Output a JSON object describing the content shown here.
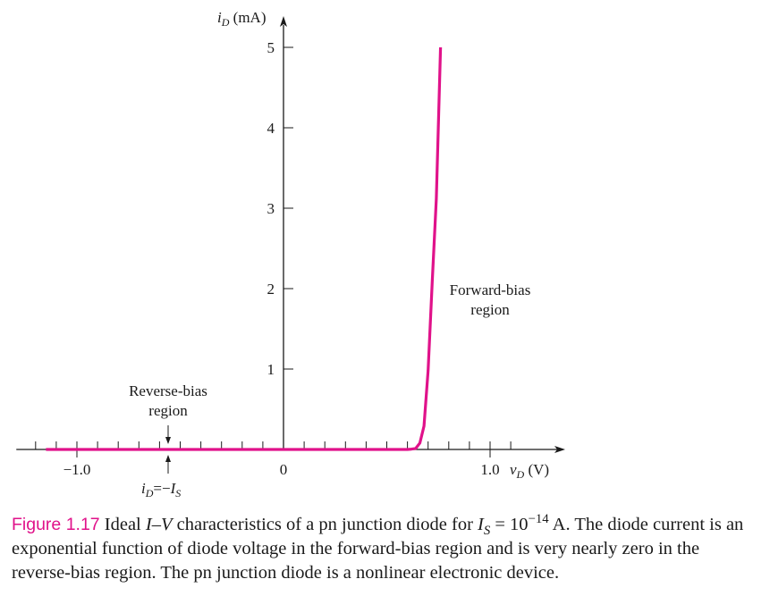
{
  "chart_data": {
    "type": "line",
    "xlabel": {
      "var": "v",
      "sub": "D",
      "unit": "(V)"
    },
    "ylabel": {
      "var": "i",
      "sub": "D",
      "unit": "(mA)"
    },
    "xlim": [
      -1.25,
      1.35
    ],
    "ylim": [
      0,
      5.4
    ],
    "x_tick_labels": [
      {
        "x": -1.0,
        "label": "−1.0"
      },
      {
        "x": 0.0,
        "label": "0"
      },
      {
        "x": 1.0,
        "label": "1.0"
      }
    ],
    "y_tick_labels": [
      {
        "y": 1,
        "label": "1"
      },
      {
        "y": 2,
        "label": "2"
      },
      {
        "y": 3,
        "label": "3"
      },
      {
        "y": 4,
        "label": "4"
      },
      {
        "y": 5,
        "label": "5"
      }
    ],
    "x_minor_ticks": [
      -1.2,
      -1.1,
      -0.9,
      -0.8,
      -0.7,
      -0.6,
      -0.5,
      -0.4,
      -0.3,
      -0.2,
      -0.1,
      0.1,
      0.2,
      0.3,
      0.4,
      0.5,
      0.6,
      0.7,
      0.8,
      0.9,
      1.1
    ],
    "series": [
      {
        "color": "#e0128a",
        "function": "exponential",
        "Is_A": 1e-14,
        "x": [
          -1.15,
          0.0,
          0.5,
          0.6,
          0.62,
          0.64,
          0.66,
          0.68,
          0.7,
          0.72,
          0.74,
          0.76
        ],
        "y": [
          0.0,
          0.0,
          0.0,
          0.0003,
          0.005,
          0.012,
          0.08,
          0.29,
          0.98,
          2.08,
          3.12,
          5.0
        ]
      }
    ],
    "annotations": [
      {
        "text_lines": [
          "Forward-bias",
          "region"
        ]
      },
      {
        "text_lines": [
          "Reverse-bias",
          "region"
        ]
      },
      {
        "text": "i_D = −I_S",
        "var": "i",
        "sub": "D",
        "eq": "=−",
        "var2": "I",
        "sub2": "S"
      }
    ]
  },
  "caption": {
    "label": "Figure 1.17",
    "text_parts": {
      "p1": " Ideal ",
      "p2": "I–V",
      "p3": " characteristics of a pn junction diode for ",
      "p4": "I",
      "p5": "S",
      "p6": " = 10",
      "p7": "−14",
      "p8": " A. The diode current is an exponential function of diode voltage in the forward-bias region and is very nearly zero in the reverse-bias region. The pn junction diode is a nonlinear electronic device."
    }
  }
}
